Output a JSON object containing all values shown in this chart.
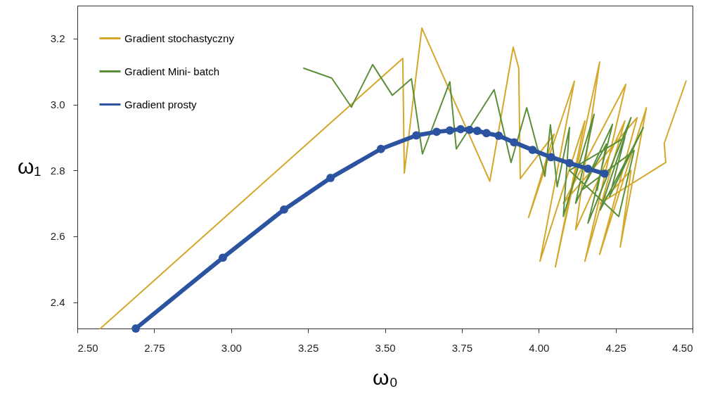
{
  "chart_data": {
    "type": "line",
    "xlabel": "ω₀",
    "ylabel": "ω₁",
    "xlim": [
      2.5,
      4.5
    ],
    "ylim": [
      2.32,
      3.3
    ],
    "xticks": [
      {
        "value": 2.5,
        "label": "2.50"
      },
      {
        "value": 2.75,
        "label": "2.75"
      },
      {
        "value": 3,
        "label": "3.00"
      },
      {
        "value": 3.25,
        "label": "3.25"
      },
      {
        "value": 3.5,
        "label": "3.50"
      },
      {
        "value": 3.75,
        "label": "3.75"
      },
      {
        "value": 4,
        "label": "4.00"
      },
      {
        "value": 4.25,
        "label": "4.25"
      },
      {
        "value": 4.5,
        "label": "4.50"
      }
    ],
    "yticks": [
      {
        "value": 2.4,
        "label": "2.4"
      },
      {
        "value": 2.6,
        "label": "2.6"
      },
      {
        "value": 2.8,
        "label": "2.8"
      },
      {
        "value": 3.0,
        "label": "3.0"
      },
      {
        "value": 3.2,
        "label": "3.2"
      }
    ],
    "grid": false,
    "legend": "top left",
    "series": [
      {
        "name": "Gradient stochastyczny",
        "color": "#d4a82a",
        "marker": "none",
        "x": [
          2.575,
          3.558,
          3.563,
          3.62,
          3.841,
          3.917,
          3.935,
          3.94,
          4.05,
          3.967,
          4.116,
          4.004,
          4.15,
          4.054,
          4.198,
          4.12,
          4.28,
          4.15,
          4.283,
          4.08,
          4.32,
          4.198,
          4.35,
          4.265,
          4.3,
          4.2,
          4.413,
          4.408,
          4.479
        ],
        "values": [
          2.32,
          3.14,
          2.792,
          3.232,
          2.767,
          3.174,
          3.11,
          2.775,
          2.91,
          2.657,
          3.071,
          2.524,
          2.95,
          2.507,
          3.129,
          2.62,
          2.95,
          2.524,
          3.061,
          2.7,
          2.96,
          2.545,
          2.99,
          2.567,
          2.8,
          2.7,
          2.824,
          2.882,
          3.071
        ]
      },
      {
        "name": "Gradient Mini- batch",
        "color": "#5a8f3a",
        "marker": "none",
        "x": [
          3.236,
          3.327,
          3.391,
          3.46,
          3.524,
          3.586,
          3.622,
          3.711,
          3.732,
          3.855,
          3.91,
          3.961,
          4.02,
          4.038,
          4.06,
          4.1,
          4.08,
          4.18,
          4.12,
          4.24,
          4.16,
          4.3,
          4.2,
          4.34,
          4.23,
          4.28,
          4.1,
          4.26,
          4.31,
          4.14,
          4.22,
          4.19
        ],
        "values": [
          3.11,
          3.08,
          2.992,
          3.121,
          3.028,
          3.078,
          2.85,
          3.069,
          2.865,
          3.045,
          2.824,
          2.99,
          2.782,
          2.938,
          2.75,
          2.93,
          2.66,
          2.97,
          2.7,
          2.94,
          2.64,
          2.96,
          2.68,
          2.93,
          2.72,
          2.9,
          2.8,
          2.66,
          2.86,
          2.74,
          2.88,
          2.74
        ]
      },
      {
        "name": "Gradient prosty",
        "color": "#2c53a0",
        "marker": "circle",
        "x": [
          2.69,
          2.973,
          3.172,
          3.323,
          3.487,
          3.602,
          3.668,
          3.711,
          3.746,
          3.775,
          3.8,
          3.83,
          3.87,
          3.92,
          3.98,
          4.04,
          4.1,
          4.16,
          4.214
        ],
        "values": [
          2.32,
          2.535,
          2.681,
          2.777,
          2.865,
          2.906,
          2.917,
          2.921,
          2.925,
          2.923,
          2.92,
          2.913,
          2.905,
          2.885,
          2.862,
          2.84,
          2.822,
          2.805,
          2.79
        ]
      }
    ]
  }
}
